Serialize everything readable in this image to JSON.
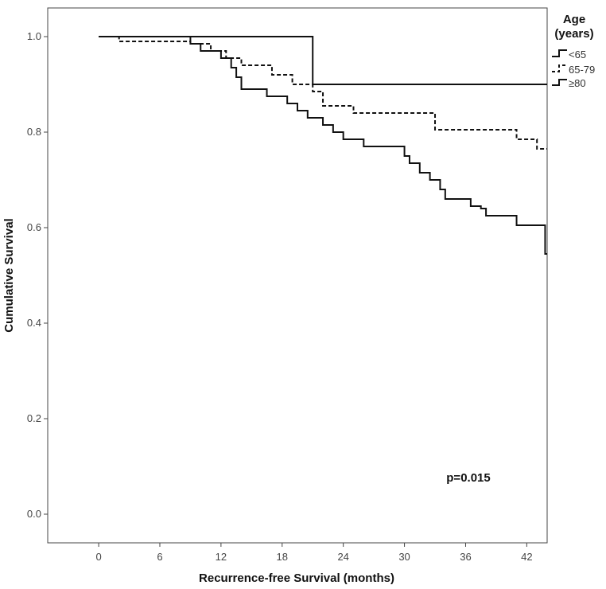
{
  "chart_data": {
    "type": "line",
    "step": true,
    "title": "",
    "xlabel": "Recurrence-free Survival (months)",
    "ylabel": "Cumulative Survival",
    "xlim": [
      -5,
      44
    ],
    "ylim": [
      -0.06,
      1.06
    ],
    "xticks": [
      0,
      6,
      12,
      18,
      24,
      30,
      36,
      42
    ],
    "yticks": [
      0.0,
      0.2,
      0.4,
      0.6,
      0.8,
      1.0
    ],
    "ytick_labels": [
      "0.0",
      "0.2",
      "0.4",
      "0.6",
      "0.8",
      "1.0"
    ],
    "legend": {
      "title_line1": "Age",
      "title_line2": "(years)",
      "placement": "top-right outside"
    },
    "annotation": "p=0.015",
    "series": [
      {
        "name": "<65",
        "style": "solid",
        "x": [
          0,
          21,
          44
        ],
        "y": [
          1.0,
          0.9,
          0.9
        ]
      },
      {
        "name": "65-79",
        "style": "dashed",
        "x": [
          0,
          2,
          9,
          11,
          12.5,
          14,
          17,
          19,
          21,
          22,
          25,
          29,
          33,
          38,
          41,
          43,
          44
        ],
        "y": [
          1.0,
          0.99,
          0.985,
          0.97,
          0.955,
          0.94,
          0.92,
          0.9,
          0.885,
          0.855,
          0.84,
          0.84,
          0.805,
          0.805,
          0.785,
          0.765,
          0.765
        ]
      },
      {
        "name": "≥80",
        "style": "solid",
        "x": [
          0,
          9,
          10,
          12,
          13,
          13.5,
          14,
          16.5,
          18.5,
          19.5,
          20.5,
          22,
          23,
          24,
          26,
          30,
          30.5,
          31.5,
          32.5,
          33.5,
          34,
          36.5,
          37.5,
          38,
          41,
          43.8,
          44
        ],
        "y": [
          1.0,
          0.985,
          0.97,
          0.955,
          0.935,
          0.915,
          0.89,
          0.875,
          0.86,
          0.845,
          0.83,
          0.815,
          0.8,
          0.785,
          0.77,
          0.75,
          0.735,
          0.715,
          0.7,
          0.68,
          0.66,
          0.645,
          0.64,
          0.625,
          0.605,
          0.545,
          0.545
        ]
      }
    ]
  }
}
